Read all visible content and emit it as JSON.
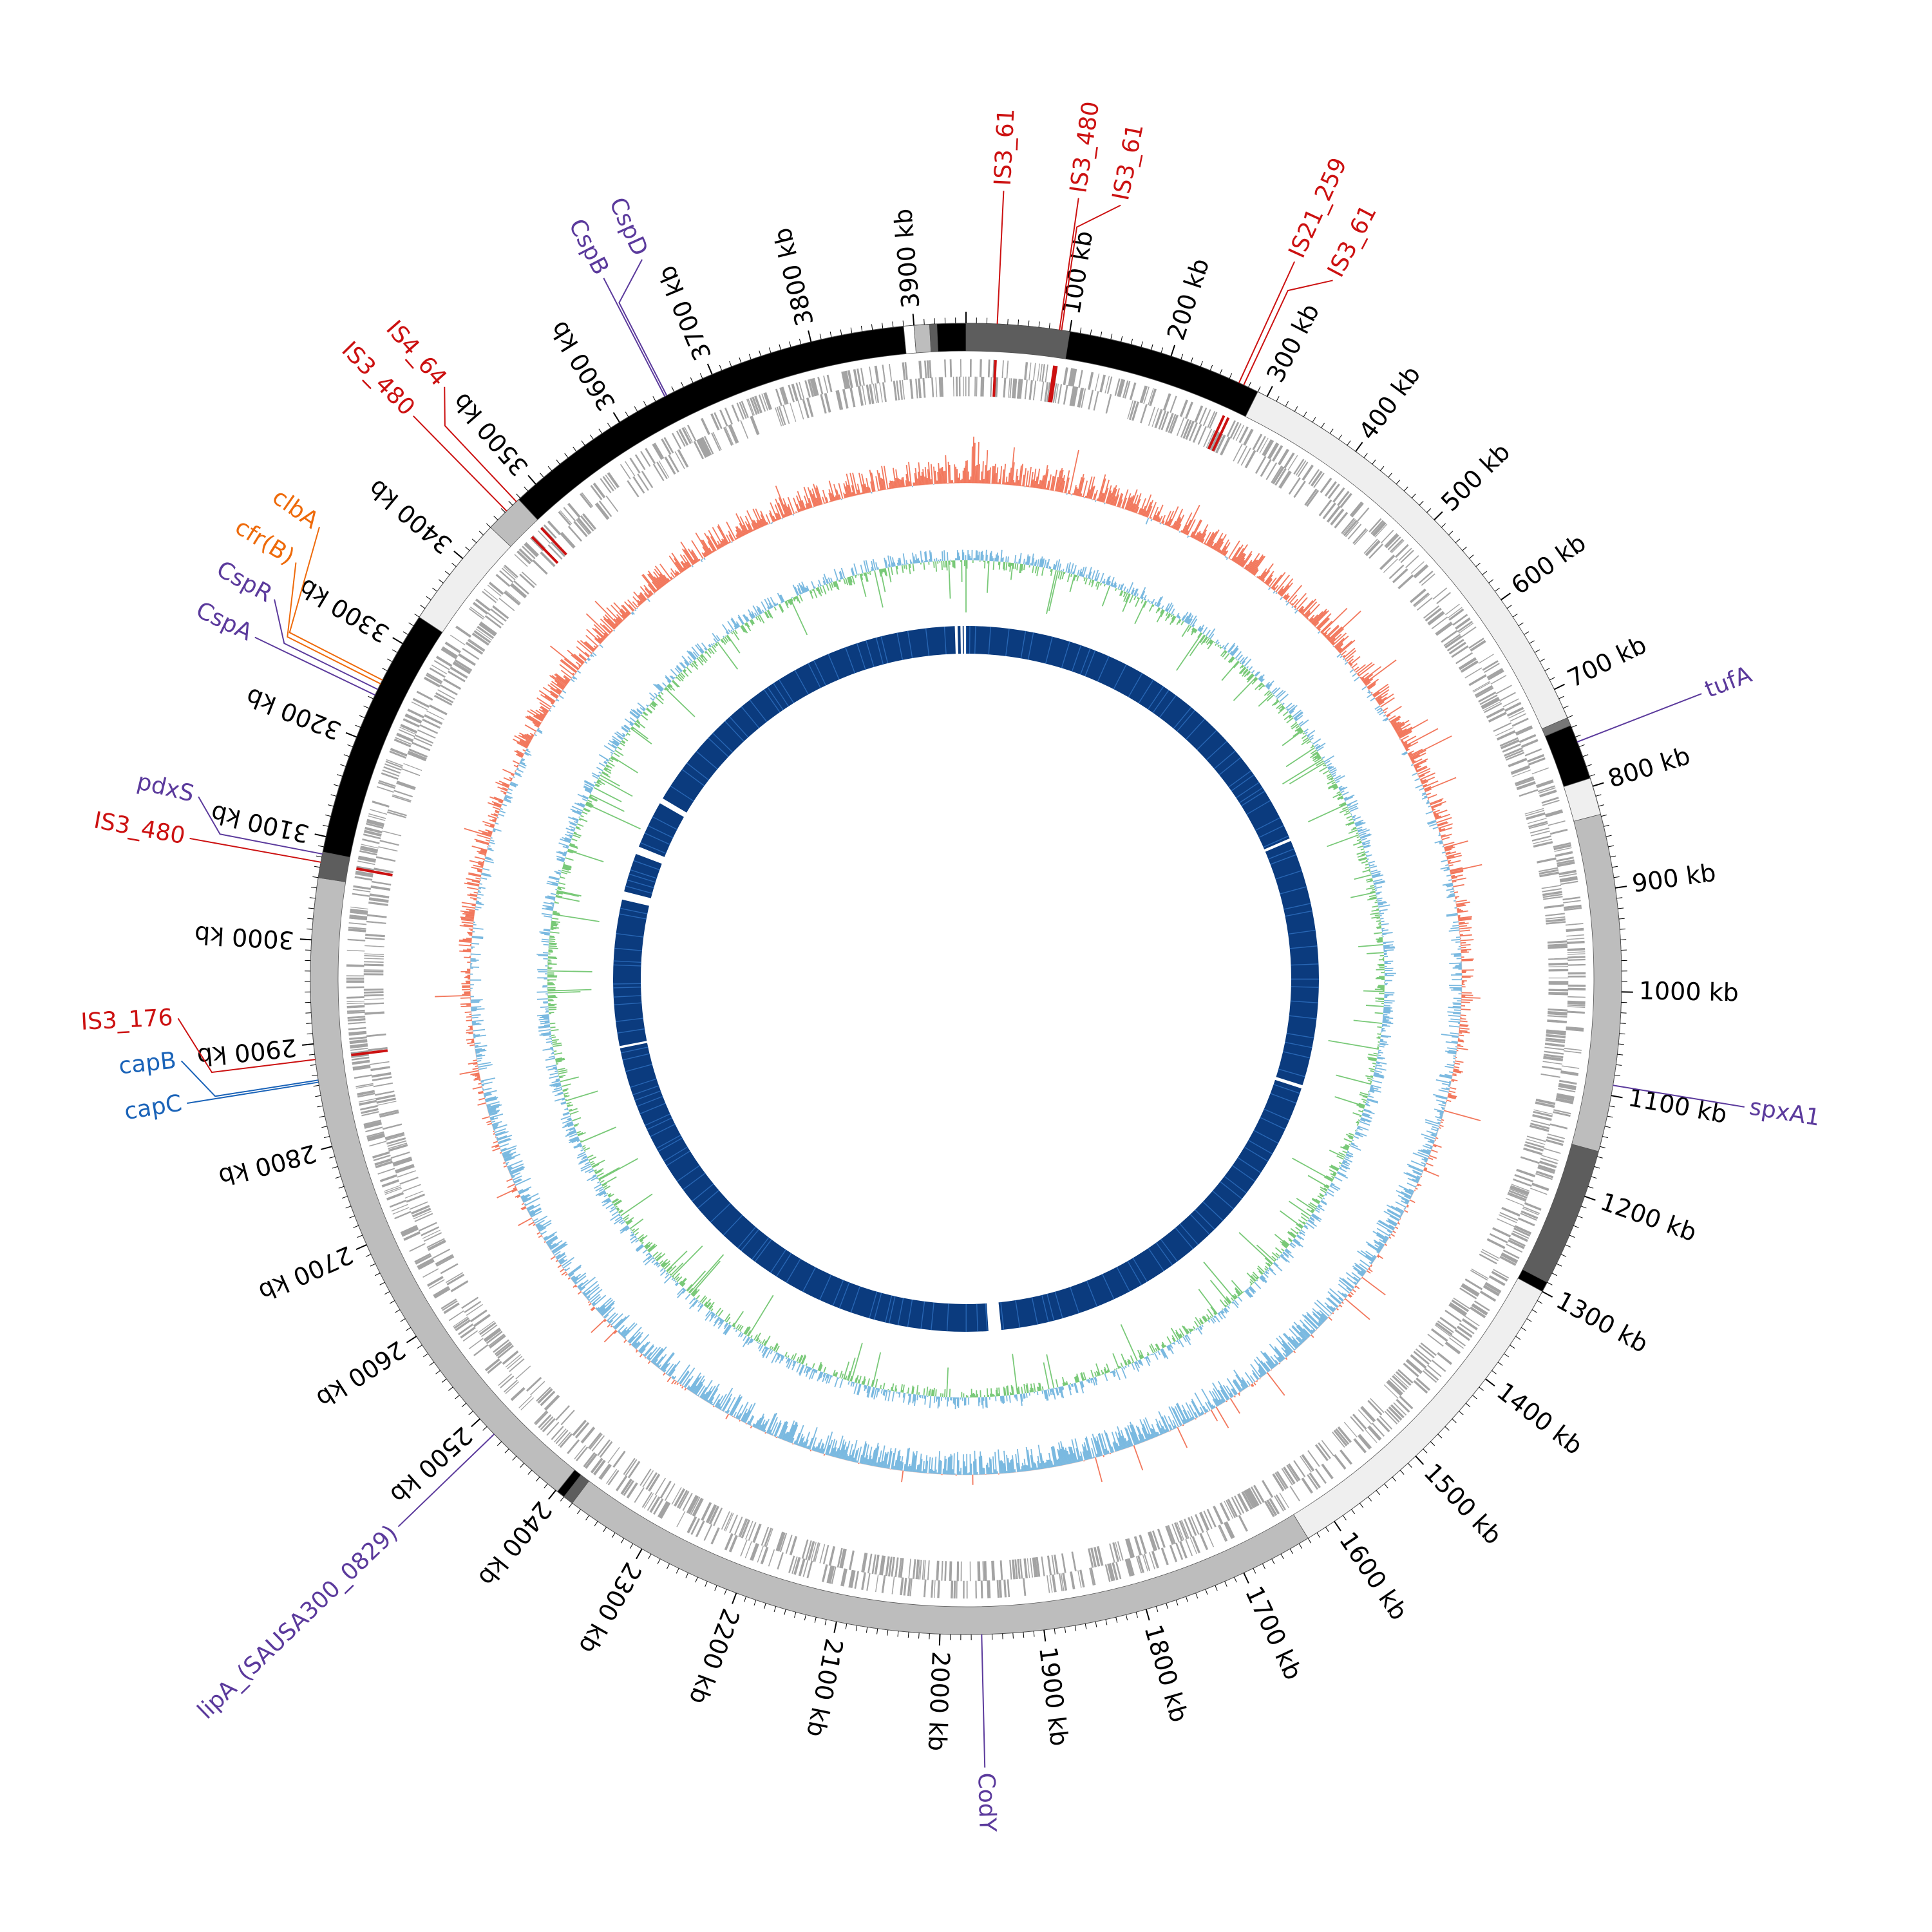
{
  "genome": {
    "length_kb": 3950,
    "tick_unit": "kb",
    "major_tick_step_kb": 100,
    "minor_tick_step_kb": 10
  },
  "colors": {
    "is_element": "#cc1111",
    "resistance": "#ee6a0a",
    "regulator": "#5b3a9c",
    "capsule": "#1a63b8",
    "gc_content": "#f2775c",
    "gc_skew_high": "#7ab9e0",
    "gc_skew_low": "#79c978",
    "homology": "#0b3b7e",
    "cds": "#9a9a9a"
  },
  "segments": [
    {
      "start": 0,
      "end": 100,
      "shade": "#5d5d5d"
    },
    {
      "start": 100,
      "end": 290,
      "shade": "#000000"
    },
    {
      "start": 290,
      "end": 730,
      "shade": "#efefef"
    },
    {
      "start": 730,
      "end": 738,
      "shade": "#777777"
    },
    {
      "start": 738,
      "end": 792,
      "shade": "#000000"
    },
    {
      "start": 792,
      "end": 828,
      "shade": "#efefef"
    },
    {
      "start": 828,
      "end": 1155,
      "shade": "#bdbdbd"
    },
    {
      "start": 1155,
      "end": 1290,
      "shade": "#5d5d5d"
    },
    {
      "start": 1290,
      "end": 1300,
      "shade": "#000000"
    },
    {
      "start": 1300,
      "end": 1630,
      "shade": "#efefef"
    },
    {
      "start": 1630,
      "end": 2380,
      "shade": "#bdbdbd"
    },
    {
      "start": 2380,
      "end": 2390,
      "shade": "#5d5d5d"
    },
    {
      "start": 2390,
      "end": 2398,
      "shade": "#000000"
    },
    {
      "start": 2398,
      "end": 3060,
      "shade": "#bdbdbd"
    },
    {
      "start": 3060,
      "end": 3085,
      "shade": "#5d5d5d"
    },
    {
      "start": 3085,
      "end": 3330,
      "shade": "#000000"
    },
    {
      "start": 3330,
      "end": 3440,
      "shade": "#efefef"
    },
    {
      "start": 3440,
      "end": 3478,
      "shade": "#bdbdbd"
    },
    {
      "start": 3478,
      "end": 3890,
      "shade": "#000000"
    },
    {
      "start": 3890,
      "end": 3900,
      "shade": "#ffffff"
    },
    {
      "start": 3900,
      "end": 3915,
      "shade": "#bdbdbd"
    },
    {
      "start": 3915,
      "end": 3922,
      "shade": "#5d5d5d"
    },
    {
      "start": 3922,
      "end": 3950,
      "shade": "#000000"
    }
  ],
  "homology_gaps": [
    {
      "start": 3930,
      "end": 3935
    },
    {
      "start": 3940,
      "end": 3944
    },
    {
      "start": 3946,
      "end": 3950
    },
    {
      "start": 730,
      "end": 735
    },
    {
      "start": 1180,
      "end": 1186
    },
    {
      "start": 1912,
      "end": 1935
    },
    {
      "start": 2838,
      "end": 2842
    },
    {
      "start": 3105,
      "end": 3120
    },
    {
      "start": 3190,
      "end": 3204
    },
    {
      "start": 3290,
      "end": 3300
    }
  ],
  "annotations": [
    {
      "label": "IS3_61",
      "category": "is_element",
      "position_kb": 30
    },
    {
      "label": "IS3_480",
      "category": "is_element",
      "position_kb": 90
    },
    {
      "label": "IS3_61",
      "category": "is_element",
      "position_kb": 92
    },
    {
      "label": "IS21_259",
      "category": "is_element",
      "position_kb": 270
    },
    {
      "label": "IS3_61",
      "category": "is_element",
      "position_kb": 275
    },
    {
      "label": "tufA",
      "category": "regulator",
      "position_kb": 755
    },
    {
      "label": "spxA1",
      "category": "regulator",
      "position_kb": 1090
    },
    {
      "label": "CodY",
      "category": "regulator",
      "position_kb": 1960
    },
    {
      "label": "lipA_(SAUSA300_0829)",
      "category": "regulator",
      "position_kb": 2480
    },
    {
      "label": "capB",
      "category": "capsule",
      "position_kb": 2865
    },
    {
      "label": "capC",
      "category": "capsule",
      "position_kb": 2863
    },
    {
      "label": "IS3_176",
      "category": "is_element",
      "position_kb": 2885
    },
    {
      "label": "IS3_480",
      "category": "is_element",
      "position_kb": 3075
    },
    {
      "label": "pdxS",
      "category": "regulator",
      "position_kb": 3083
    },
    {
      "label": "CspA",
      "category": "regulator",
      "position_kb": 3244
    },
    {
      "label": "CspR",
      "category": "regulator",
      "position_kb": 3250
    },
    {
      "label": "cfr(B)",
      "category": "resistance",
      "position_kb": 3256
    },
    {
      "label": "clbA",
      "category": "resistance",
      "position_kb": 3260
    },
    {
      "label": "IS3_480",
      "category": "is_element",
      "position_kb": 3462
    },
    {
      "label": "IS4_64",
      "category": "is_element",
      "position_kb": 3475
    },
    {
      "label": "CspB",
      "category": "regulator",
      "position_kb": 3650
    },
    {
      "label": "CspD",
      "category": "regulator",
      "position_kb": 3652
    }
  ]
}
